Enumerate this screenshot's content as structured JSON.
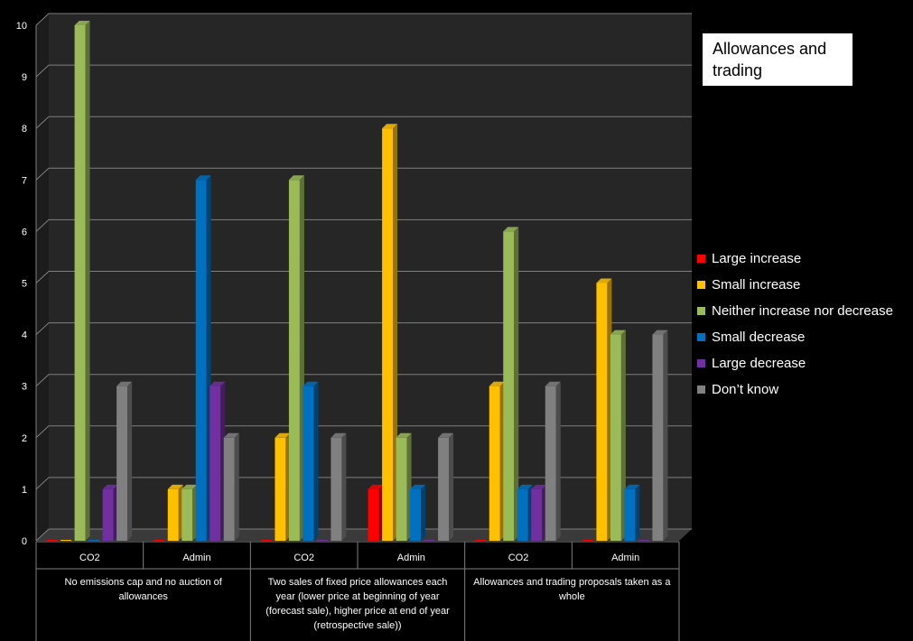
{
  "chart_data": {
    "type": "bar",
    "title": "Allowances and trading",
    "ylim": [
      0,
      10
    ],
    "yticks": [
      "0",
      "1",
      "2",
      "3",
      "4",
      "5",
      "6",
      "7",
      "8",
      "9",
      "10"
    ],
    "grid": true,
    "legend_position": "right",
    "categories": [
      "CO2",
      "Admin",
      "CO2",
      "Admin",
      "CO2",
      "Admin"
    ],
    "groups": [
      {
        "label": "No emissions cap and no auction of allowances",
        "span": 2
      },
      {
        "label": "Two sales of fixed price allowances each year (lower price at beginning of year (forecast sale), higher price at end of year (retrospective sale))",
        "span": 2
      },
      {
        "label": "Allowances and trading proposals taken as a whole",
        "span": 2
      }
    ],
    "series": [
      {
        "name": "Large increase",
        "color": "#ff0000",
        "values": [
          0,
          0,
          0,
          1,
          0,
          0
        ]
      },
      {
        "name": "Small increase",
        "color": "#ffc000",
        "values": [
          0,
          1,
          2,
          8,
          3,
          5
        ]
      },
      {
        "name": "Neither increase nor decrease",
        "color": "#9bbb59",
        "values": [
          10,
          1,
          7,
          2,
          6,
          4
        ]
      },
      {
        "name": "Small decrease",
        "color": "#0070c0",
        "values": [
          0,
          7,
          3,
          1,
          1,
          1
        ]
      },
      {
        "name": "Large decrease",
        "color": "#7030a0",
        "values": [
          1,
          3,
          0,
          0,
          1,
          0
        ]
      },
      {
        "name": "Don’t know",
        "color": "#808080",
        "values": [
          3,
          2,
          2,
          2,
          3,
          4
        ]
      }
    ]
  }
}
